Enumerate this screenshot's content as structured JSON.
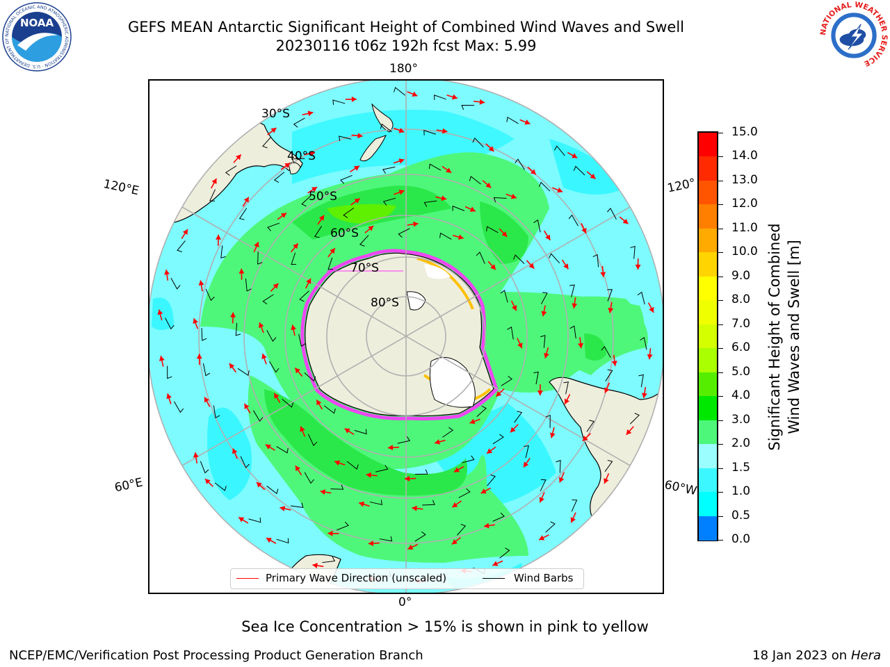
{
  "header": {
    "title_line1": "GEFS MEAN Antarctic Significant Height of Combined Wind Waves and Swell",
    "title_line2": "20230116 t06z 192h fcst   Max: 5.99"
  },
  "logos": {
    "noaa_text": "NOAA",
    "noaa_ring_text": "NATIONAL OCEANIC AND ATMOSPHERIC ADMINISTRATION · U.S. DEPARTMENT OF COMMERCE",
    "nws_ring_text": "NATIONAL WEATHER SERVICE"
  },
  "map": {
    "projection": "south-polar-stereographic",
    "lon_labels": {
      "top": "180°",
      "bottom": "0°",
      "upper_left": "120°E",
      "lower_left": "60°E",
      "upper_right": "120°",
      "lower_right": "60°W"
    },
    "lat_labels": [
      "30°S",
      "40°S",
      "50°S",
      "60°S",
      "70°S",
      "80°S"
    ],
    "colors": {
      "land": "#eeeedd",
      "ocean_lt": "#77ffff",
      "ocean_cyan": "#3af7ff",
      "band_green_lt": "#4ef77a",
      "band_green": "#2be84a",
      "band_green_hi": "#5ef000",
      "ice_pink": "#ff33ff",
      "arrow_red": "#ff0000"
    }
  },
  "colorbar": {
    "title": "Significant Height of Combined\nWind Waves and Swell [m]",
    "ticks": [
      "15.0",
      "14.0",
      "13.0",
      "12.0",
      "11.0",
      "10.0",
      "9.0",
      "8.0",
      "7.0",
      "6.0",
      "5.0",
      "4.0",
      "3.0",
      "2.0",
      "1.5",
      "1.0",
      "0.5",
      "0.0"
    ],
    "colors_top_to_bottom": [
      "#ff0000",
      "#ff2a00",
      "#ff5500",
      "#ff7f00",
      "#ffaa00",
      "#ffd400",
      "#ffff00",
      "#f0ff00",
      "#d4ff00",
      "#aaff00",
      "#55ee00",
      "#00e800",
      "#4cf77a",
      "#9cfdff",
      "#3cf7ff",
      "#00ffff",
      "#0080ff",
      "#0000ff"
    ]
  },
  "legend": {
    "wave_label": "Primary Wave Direction (unscaled)",
    "wind_label": "Wind Barbs",
    "wave_color": "#ff0000",
    "wind_color": "#000000"
  },
  "footer": {
    "ice_note": "Sea Ice Concentration > 15% is shown in pink to yellow",
    "credit_left": "NCEP/EMC/Verification Post Processing Product Generation Branch",
    "credit_date": "18 Jan 2023 on ",
    "credit_host": "Hera"
  }
}
